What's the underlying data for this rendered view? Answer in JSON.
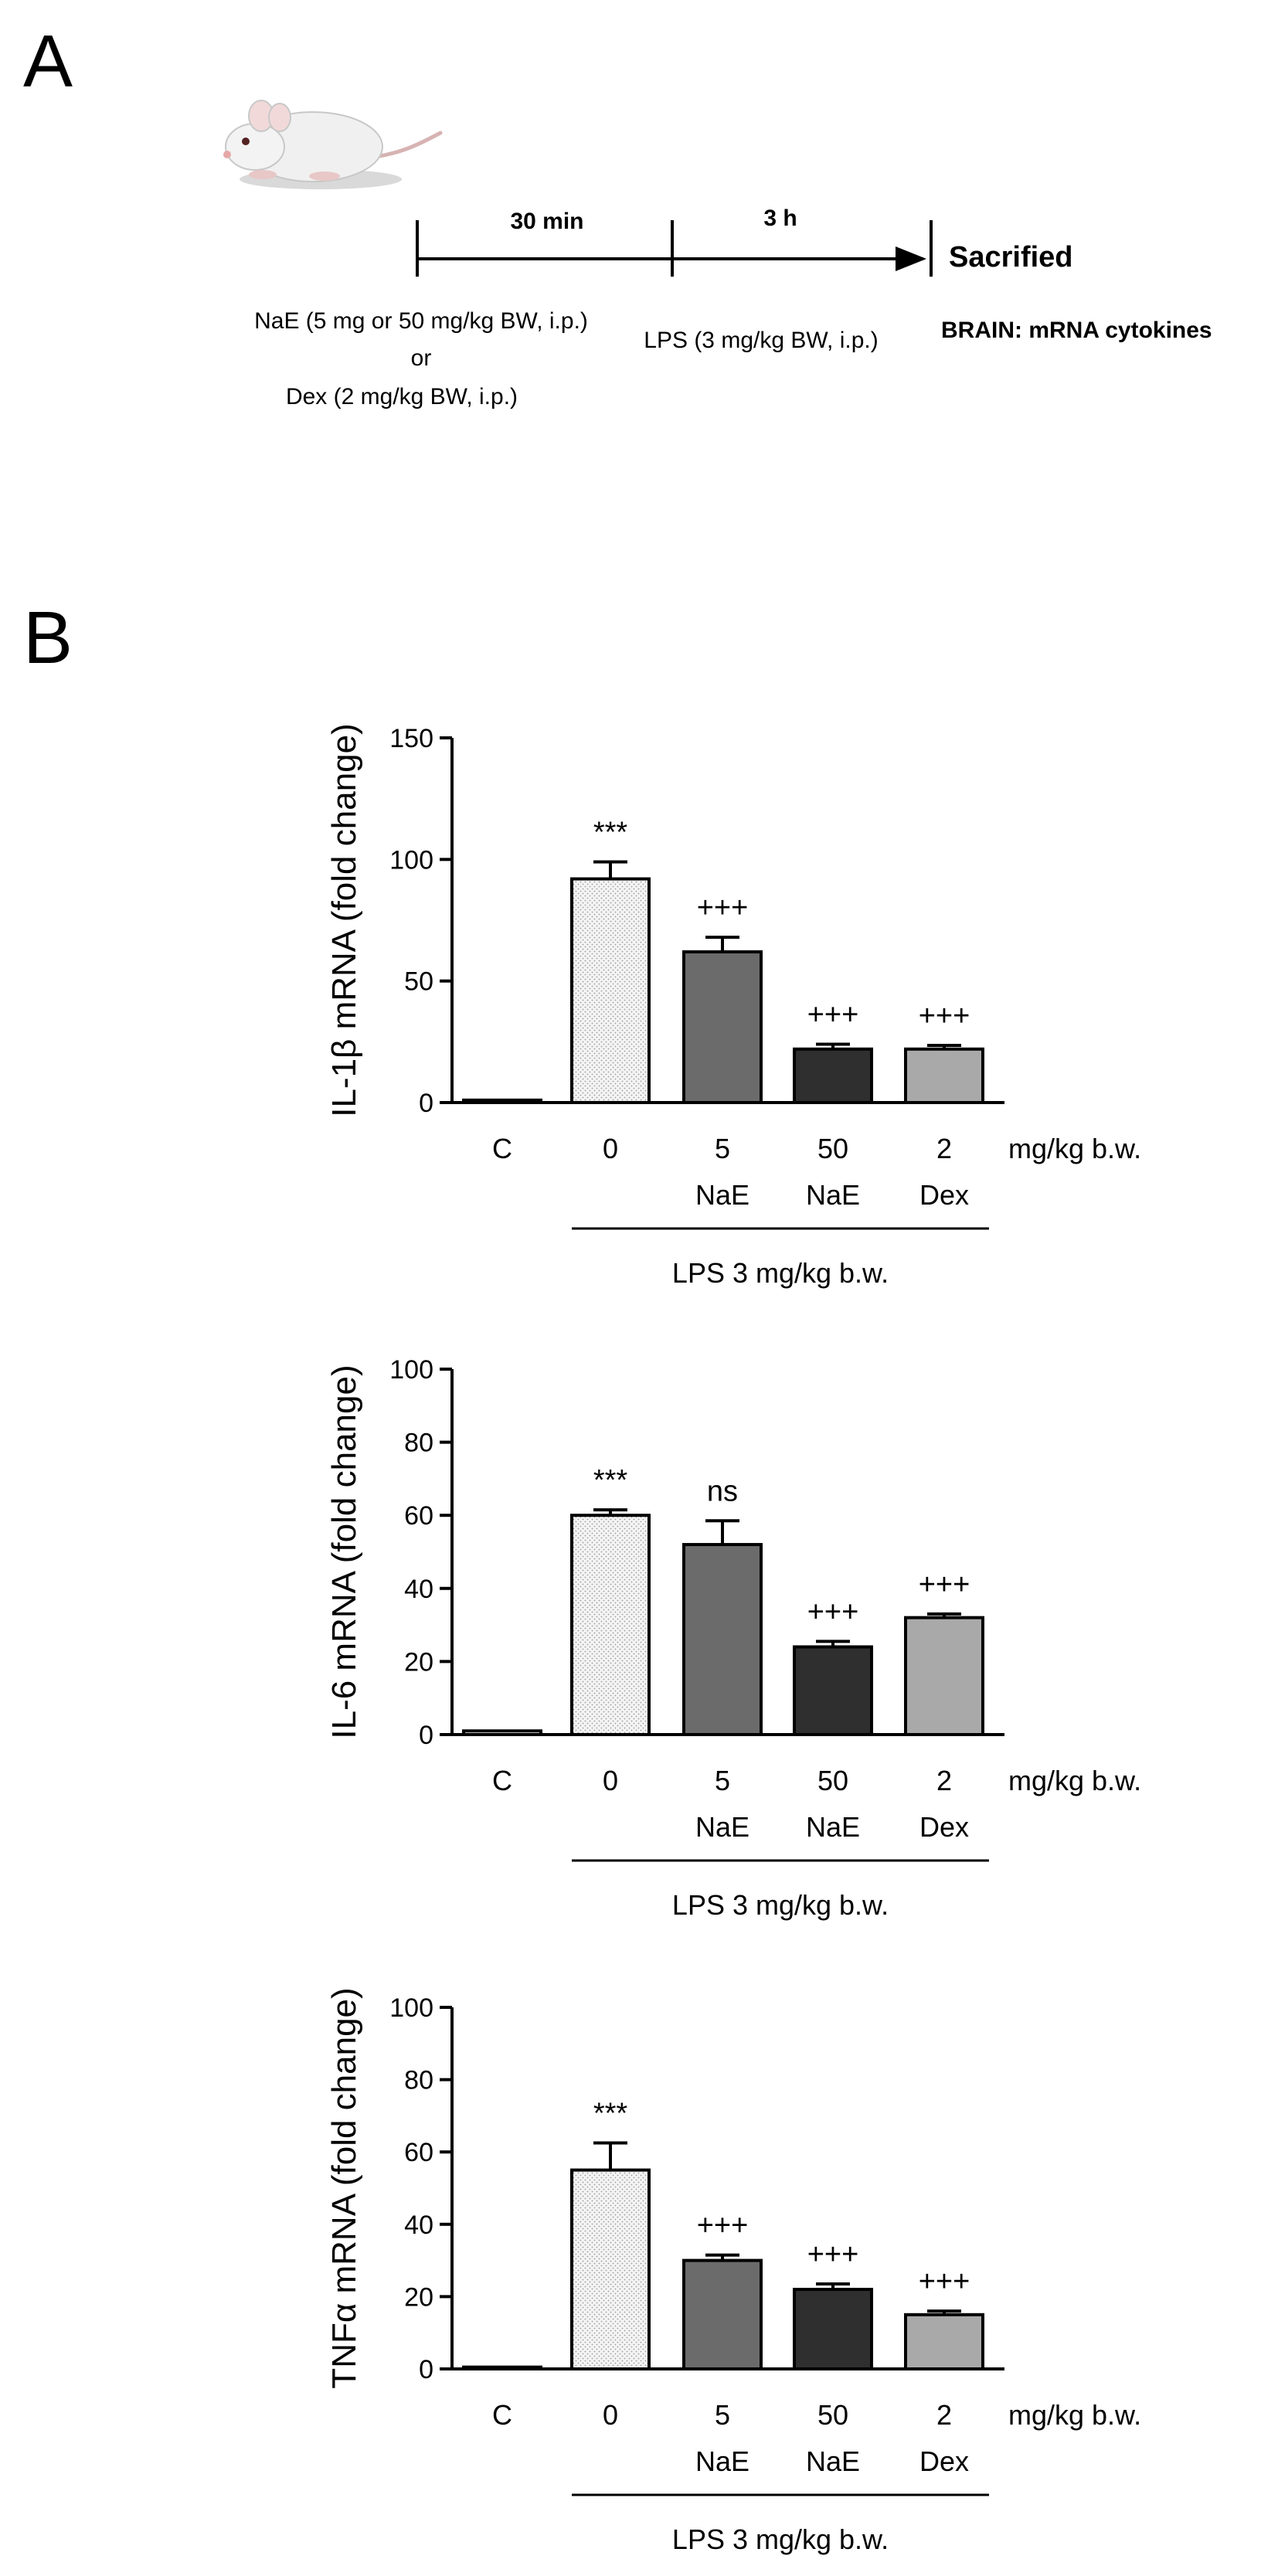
{
  "panel_a": {
    "letter": "A",
    "mouse_icon": "mouse-icon",
    "interval1": "30 min",
    "interval2": "3 h",
    "end_label": "Sacrified",
    "treat_line1": "NaE (5 mg or 50 mg/kg BW, i.p.)",
    "treat_or": "or",
    "treat_line2": "Dex (2 mg/kg BW, i.p.)",
    "lps_label": "LPS (3 mg/kg BW, i.p.)",
    "outcome": "BRAIN: mRNA cytokines"
  },
  "panel_b": {
    "letter": "B"
  },
  "colors": {
    "axis": "#000000",
    "control": "#ffffff",
    "lps": "#eeeeee",
    "nae5": "#6b6b6b",
    "nae50": "#2f2f2f",
    "dex": "#a9a9a9"
  },
  "chart_data": [
    {
      "type": "bar",
      "ylabel": "IL-1β mRNA (fold change)",
      "ylim": [
        0,
        150
      ],
      "yticks": [
        "0",
        "50",
        "100",
        "150"
      ],
      "ytick_values": [
        0,
        50,
        100,
        150
      ],
      "categories": [
        "C",
        "0",
        "5",
        "50",
        "2"
      ],
      "sublabels": [
        "",
        "",
        "NaE",
        "NaE",
        "Dex"
      ],
      "unit_label": "mg/kg b.w.",
      "values": [
        1,
        92,
        62,
        22,
        22
      ],
      "errors": [
        0,
        7,
        6,
        2,
        1.5
      ],
      "annotations": [
        "",
        "***",
        "+++",
        "+++",
        "+++"
      ],
      "group_label": "LPS 3 mg/kg b.w."
    },
    {
      "type": "bar",
      "ylabel": "IL-6 mRNA (fold change)",
      "ylim": [
        0,
        100
      ],
      "yticks": [
        "0",
        "20",
        "40",
        "60",
        "80",
        "100"
      ],
      "ytick_values": [
        0,
        20,
        40,
        60,
        80,
        100
      ],
      "categories": [
        "C",
        "0",
        "5",
        "50",
        "2"
      ],
      "sublabels": [
        "",
        "",
        "NaE",
        "NaE",
        "Dex"
      ],
      "unit_label": "mg/kg b.w.",
      "values": [
        1,
        60,
        52,
        24,
        32
      ],
      "errors": [
        0,
        1.5,
        6.5,
        1.5,
        1
      ],
      "annotations": [
        "",
        "***",
        "ns",
        "+++",
        "+++"
      ],
      "group_label": "LPS 3 mg/kg b.w."
    },
    {
      "type": "bar",
      "ylabel": "TNFα mRNA (fold change)",
      "ylim": [
        0,
        100
      ],
      "yticks": [
        "0",
        "20",
        "40",
        "60",
        "80",
        "100"
      ],
      "ytick_values": [
        0,
        20,
        40,
        60,
        80,
        100
      ],
      "categories": [
        "C",
        "0",
        "5",
        "50",
        "2"
      ],
      "sublabels": [
        "",
        "",
        "NaE",
        "NaE",
        "Dex"
      ],
      "unit_label": "mg/kg b.w.",
      "values": [
        0.5,
        55,
        30,
        22,
        15
      ],
      "errors": [
        0,
        7.5,
        1.5,
        1.5,
        1
      ],
      "annotations": [
        "",
        "***",
        "+++",
        "+++",
        "+++"
      ],
      "group_label": "LPS 3 mg/kg b.w."
    }
  ]
}
